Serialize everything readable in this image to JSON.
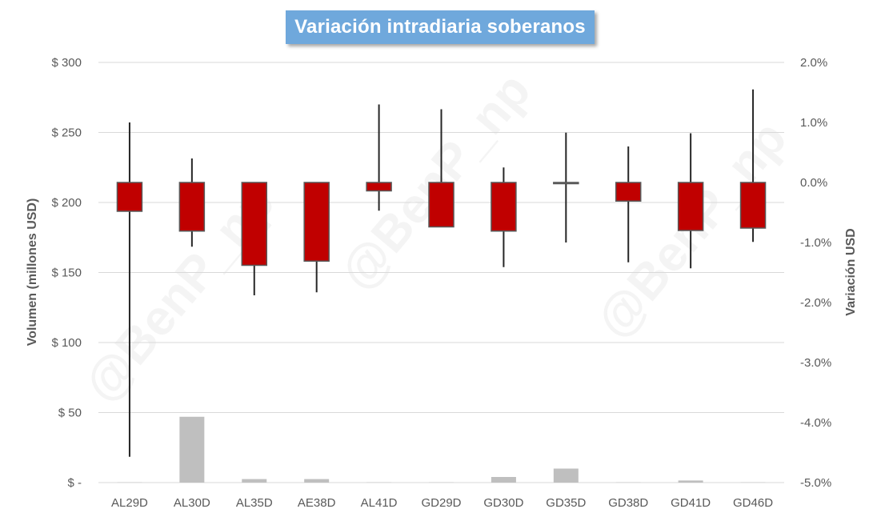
{
  "chart_data": {
    "type": "candlestick",
    "title": "Variación intradiaria soberanos",
    "ylabel_left": "Volumen (millones USD)",
    "ylabel_right": "Variación USD",
    "categories": [
      "AL29D",
      "AL30D",
      "AL35D",
      "AE38D",
      "AL41D",
      "GD29D",
      "GD30D",
      "GD35D",
      "GD38D",
      "GD41D",
      "GD46D"
    ],
    "left_axis": {
      "min": 0,
      "max": 300,
      "ticks": [
        0,
        50,
        100,
        150,
        200,
        250,
        300
      ],
      "tick_labels": [
        "$ -",
        "$ 50",
        "$ 100",
        "$ 150",
        "$ 200",
        "$ 250",
        "$ 300"
      ]
    },
    "right_axis": {
      "min": -5.0,
      "max": 2.0,
      "ticks": [
        -5,
        -4,
        -3,
        -2,
        -1,
        0,
        1,
        2
      ],
      "tick_labels": [
        "-5.0%",
        "-4.0%",
        "-3.0%",
        "-2.0%",
        "-1.0%",
        "0.0%",
        "1.0%",
        "2.0%"
      ]
    },
    "volume_series": {
      "values": [
        0.2,
        47,
        2.5,
        2.5,
        0.2,
        0.2,
        4,
        10,
        0.2,
        1.5,
        0.2
      ],
      "color": "#bfbfbf"
    },
    "candles": [
      {
        "open": 0.0,
        "close": -0.48,
        "high": 1.0,
        "low": -4.57
      },
      {
        "open": 0.0,
        "close": -0.81,
        "high": 0.4,
        "low": -1.07
      },
      {
        "open": 0.0,
        "close": -1.38,
        "high": 0.0,
        "low": -1.88
      },
      {
        "open": 0.0,
        "close": -1.31,
        "high": 0.0,
        "low": -1.83
      },
      {
        "open": 0.0,
        "close": -0.14,
        "high": 1.3,
        "low": -0.47
      },
      {
        "open": 0.0,
        "close": -0.74,
        "high": 1.22,
        "low": -0.74
      },
      {
        "open": 0.0,
        "close": -0.81,
        "high": 0.25,
        "low": -1.41
      },
      {
        "open": 0.0,
        "close": -0.02,
        "high": 0.83,
        "low": -1.0
      },
      {
        "open": 0.0,
        "close": -0.31,
        "high": 0.6,
        "low": -1.33
      },
      {
        "open": 0.0,
        "close": -0.8,
        "high": 0.82,
        "low": -1.43
      },
      {
        "open": 0.0,
        "close": -0.76,
        "high": 1.55,
        "low": -0.99
      }
    ],
    "candle_down_color": "#c00000",
    "candle_border_color": "#595959",
    "wick_color": "#262626",
    "grid": true,
    "watermark": "@BenP_np"
  }
}
